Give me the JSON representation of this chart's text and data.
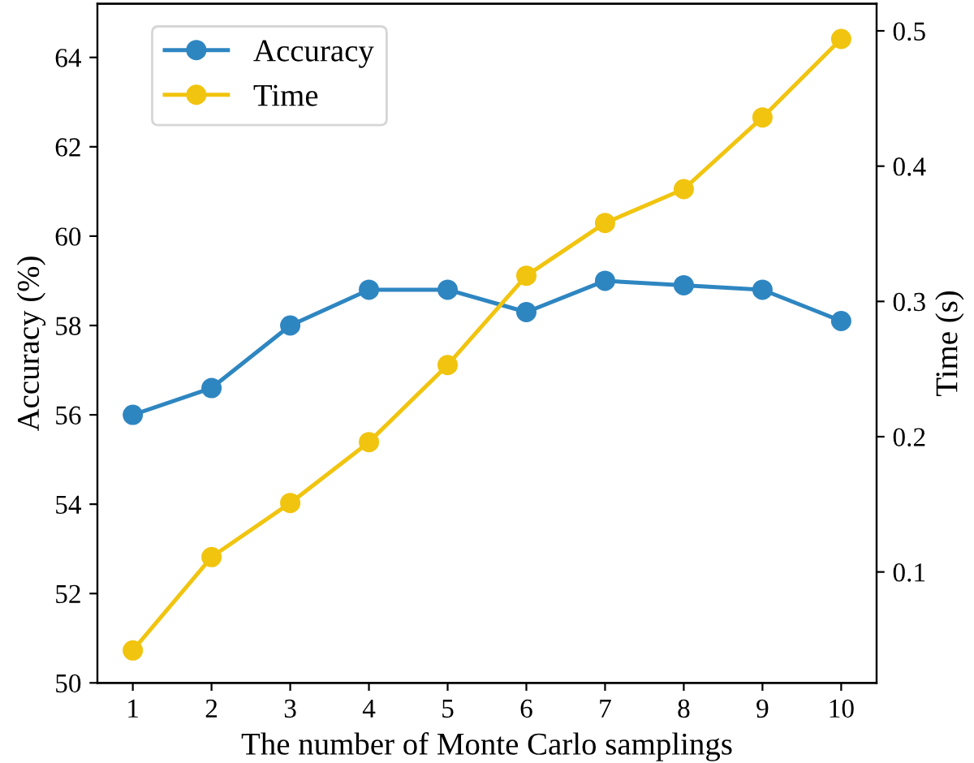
{
  "chart_data": {
    "type": "line",
    "xlabel": "The number of Monte Carlo samplings",
    "ylabel": "Accuracy (%)",
    "y2label": "Time (s)",
    "x": [
      1,
      2,
      3,
      4,
      5,
      6,
      7,
      8,
      9,
      10
    ],
    "series": [
      {
        "name": "Accuracy",
        "color": "#2e86c1",
        "values": [
          56.0,
          56.6,
          58.0,
          58.8,
          58.8,
          58.3,
          59.0,
          58.9,
          58.8,
          58.1
        ]
      },
      {
        "name": "Time",
        "color": "#f1c40f",
        "axis": "y2",
        "values": [
          0.042,
          0.111,
          0.151,
          0.196,
          0.253,
          0.319,
          0.358,
          0.383,
          0.436,
          0.494
        ]
      }
    ],
    "xlim": [
      0.55,
      10.45
    ],
    "xticks": [
      1,
      2,
      3,
      4,
      5,
      6,
      7,
      8,
      9,
      10
    ],
    "ylim": [
      50,
      65.2
    ],
    "yticks": [
      50,
      52,
      54,
      56,
      58,
      60,
      62,
      64
    ],
    "y2lim": [
      0.018,
      0.52
    ],
    "y2ticks": [
      0.1,
      0.2,
      0.3,
      0.4,
      0.5
    ],
    "marker": "circle",
    "line_style": "solid",
    "grid": false,
    "legend": "top left"
  }
}
